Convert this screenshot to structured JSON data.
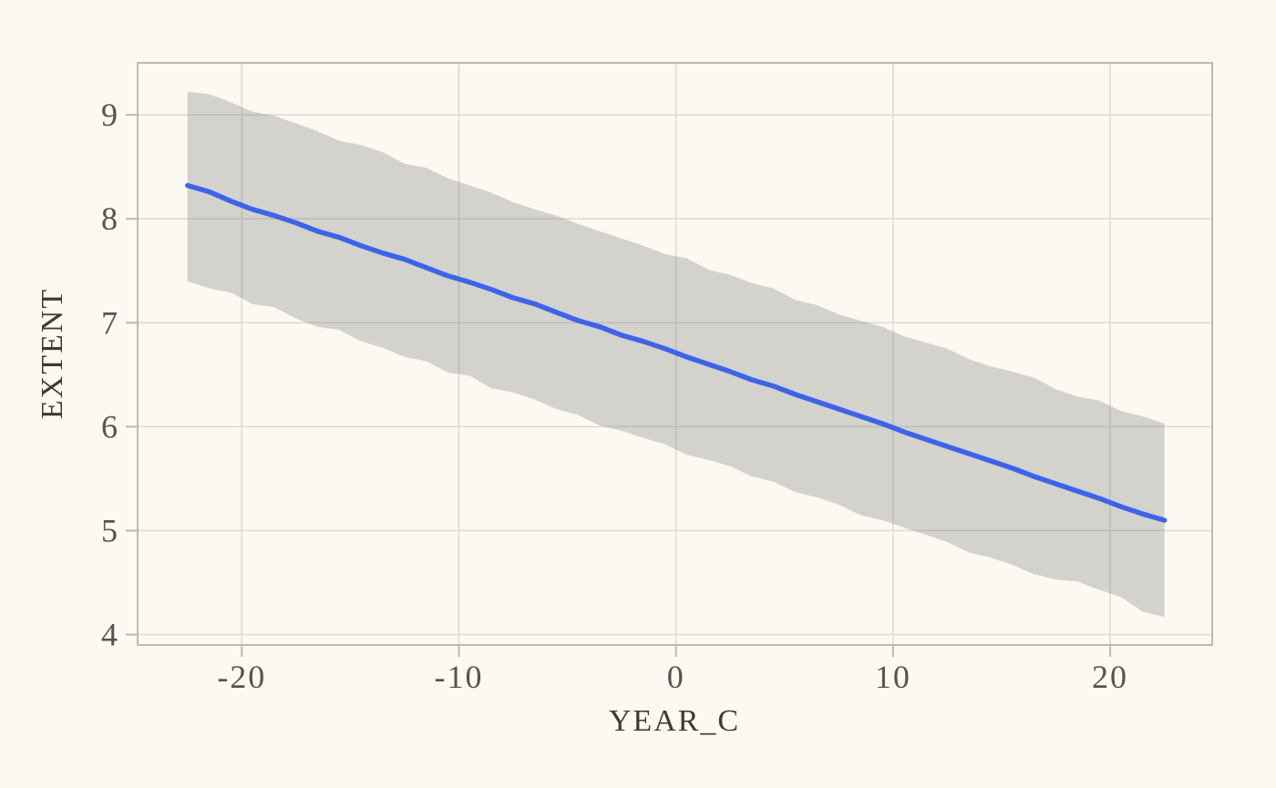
{
  "figure": {
    "colors": {
      "background": "#FBF9F1",
      "panel_border": "#BEBAB2",
      "grid": "#DEDBD3",
      "tick": "#BEBAB2",
      "tick_label": "#5B5349",
      "axis_title": "#3E3932",
      "band": "#808080",
      "band_opacity": 0.32,
      "line": "#3C64EB"
    }
  },
  "chart_data": {
    "type": "line",
    "title": "",
    "xlabel": "YEAR_C",
    "ylabel": "EXTENT",
    "xlim": [
      -24.8,
      24.7
    ],
    "ylim": [
      3.9,
      9.5
    ],
    "x_ticks": [
      -20,
      -10,
      0,
      10,
      20
    ],
    "x_tick_labels": [
      "-20",
      "-10",
      "0",
      "10",
      "20"
    ],
    "y_ticks": [
      4,
      5,
      6,
      7,
      8,
      9
    ],
    "y_tick_labels": [
      "4",
      "5",
      "6",
      "7",
      "8",
      "9"
    ],
    "grid": true,
    "legend": false,
    "x": [
      -22.5,
      -21.5,
      -20.5,
      -19.5,
      -18.5,
      -17.5,
      -16.5,
      -15.5,
      -14.5,
      -13.5,
      -12.5,
      -11.5,
      -10.5,
      -9.5,
      -8.5,
      -7.5,
      -6.5,
      -5.5,
      -4.5,
      -3.5,
      -2.5,
      -1.5,
      -0.5,
      0.5,
      1.5,
      2.5,
      3.5,
      4.5,
      5.5,
      6.5,
      7.5,
      8.5,
      9.5,
      10.5,
      11.5,
      12.5,
      13.5,
      14.5,
      15.5,
      16.5,
      17.5,
      18.5,
      19.5,
      20.5,
      21.5,
      22.5
    ],
    "series": [
      {
        "name": "fitted-trend",
        "type": "line",
        "color": "#3C64EB",
        "y": [
          8.32,
          8.26,
          8.17,
          8.09,
          8.03,
          7.96,
          7.88,
          7.82,
          7.74,
          7.67,
          7.61,
          7.53,
          7.45,
          7.39,
          7.32,
          7.24,
          7.18,
          7.1,
          7.02,
          6.96,
          6.88,
          6.82,
          6.75,
          6.67,
          6.6,
          6.53,
          6.45,
          6.39,
          6.31,
          6.24,
          6.17,
          6.1,
          6.03,
          5.95,
          5.88,
          5.81,
          5.74,
          5.67,
          5.6,
          5.52,
          5.45,
          5.38,
          5.31,
          5.23,
          5.16,
          5.1
        ]
      },
      {
        "name": "prediction-interval",
        "type": "band",
        "color": "#808080",
        "opacity": 0.32,
        "upper": [
          9.22,
          9.2,
          9.12,
          9.03,
          8.99,
          8.92,
          8.84,
          8.75,
          8.71,
          8.64,
          8.53,
          8.49,
          8.39,
          8.32,
          8.25,
          8.16,
          8.09,
          8.03,
          7.95,
          7.88,
          7.81,
          7.74,
          7.66,
          7.62,
          7.51,
          7.46,
          7.38,
          7.33,
          7.22,
          7.17,
          7.08,
          7.02,
          6.96,
          6.87,
          6.81,
          6.75,
          6.65,
          6.58,
          6.53,
          6.47,
          6.36,
          6.29,
          6.25,
          6.15,
          6.1,
          6.03
        ],
        "lower": [
          7.4,
          7.33,
          7.29,
          7.18,
          7.15,
          7.04,
          6.96,
          6.93,
          6.82,
          6.76,
          6.67,
          6.63,
          6.52,
          6.49,
          6.37,
          6.33,
          6.26,
          6.17,
          6.11,
          6.01,
          5.96,
          5.89,
          5.83,
          5.73,
          5.68,
          5.62,
          5.52,
          5.47,
          5.37,
          5.32,
          5.25,
          5.15,
          5.1,
          5.03,
          4.96,
          4.89,
          4.79,
          4.74,
          4.67,
          4.58,
          4.53,
          4.51,
          4.43,
          4.36,
          4.22,
          4.17
        ]
      }
    ]
  }
}
